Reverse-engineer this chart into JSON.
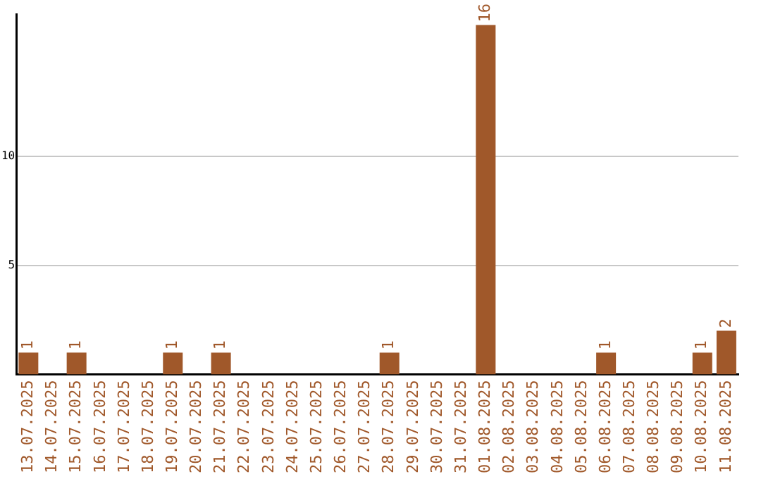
{
  "chart_data": {
    "type": "bar",
    "categories": [
      "13.07.2025",
      "14.07.2025",
      "15.07.2025",
      "16.07.2025",
      "17.07.2025",
      "18.07.2025",
      "19.07.2025",
      "20.07.2025",
      "21.07.2025",
      "22.07.2025",
      "23.07.2025",
      "24.07.2025",
      "25.07.2025",
      "26.07.2025",
      "27.07.2025",
      "28.07.2025",
      "29.07.2025",
      "30.07.2025",
      "31.07.2025",
      "01.08.2025",
      "02.08.2025",
      "03.08.2025",
      "04.08.2025",
      "05.08.2025",
      "06.08.2025",
      "07.08.2025",
      "08.08.2025",
      "09.08.2025",
      "10.08.2025",
      "11.08.2025"
    ],
    "values": [
      1,
      0,
      1,
      0,
      0,
      0,
      1,
      0,
      1,
      0,
      0,
      0,
      0,
      0,
      0,
      1,
      0,
      0,
      0,
      16,
      0,
      0,
      0,
      0,
      1,
      0,
      0,
      0,
      1,
      2
    ],
    "value_labels": [
      "1",
      null,
      "1",
      null,
      null,
      null,
      "1",
      null,
      "1",
      null,
      null,
      null,
      null,
      null,
      null,
      "1",
      null,
      null,
      null,
      "16",
      null,
      null,
      null,
      null,
      "1",
      null,
      null,
      null,
      "1",
      "2"
    ],
    "color": "#a0582a",
    "ylim": [
      0,
      16.5
    ],
    "yticks": [
      5,
      10
    ],
    "grid": "y",
    "legend": false
  }
}
